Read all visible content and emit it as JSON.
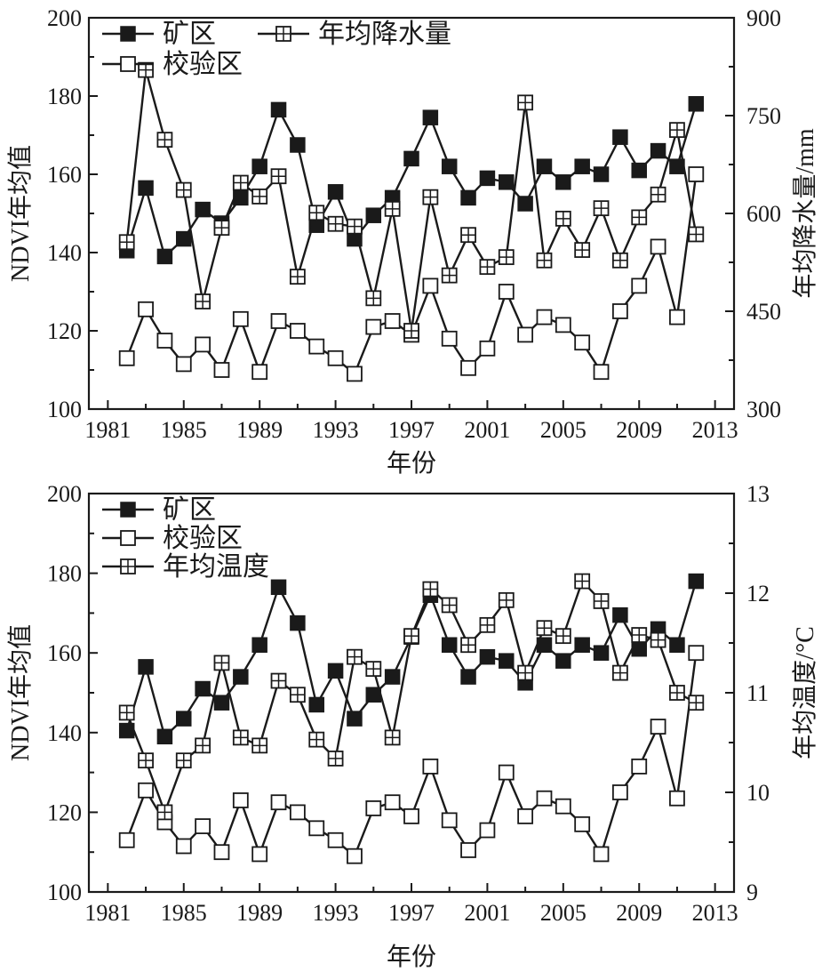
{
  "chart_data": [
    {
      "type": "line",
      "xlabel": "年份",
      "ylabel_left": "NDVI年均值",
      "ylabel_right": "年均降水量/mm",
      "x_ticks": [
        "1981",
        "1985",
        "1989",
        "1993",
        "1997",
        "2001",
        "2005",
        "2009",
        "2013"
      ],
      "y_left_ticks": [
        "100",
        "120",
        "140",
        "160",
        "180",
        "200"
      ],
      "y_right_ticks": [
        "300",
        "450",
        "600",
        "750",
        "900"
      ],
      "xlim": [
        1980,
        2014
      ],
      "ylim_left": [
        100,
        200
      ],
      "ylim_right": [
        300,
        900
      ],
      "x": [
        1982,
        1983,
        1984,
        1985,
        1986,
        1987,
        1988,
        1989,
        1990,
        1991,
        1992,
        1993,
        1994,
        1995,
        1996,
        1997,
        1998,
        1999,
        2000,
        2001,
        2002,
        2003,
        2004,
        2005,
        2006,
        2007,
        2008,
        2009,
        2010,
        2011,
        2012
      ],
      "series": [
        {
          "name": "矿区",
          "axis": "left",
          "marker": "filled-square",
          "values": [
            140.5,
            156.5,
            139,
            143.5,
            151,
            147.5,
            154,
            162,
            176.5,
            167.5,
            147,
            155.5,
            143.5,
            149.5,
            154,
            164,
            174.5,
            162,
            154,
            159,
            158,
            152.5,
            162,
            158,
            162,
            160,
            169.5,
            161,
            166,
            162,
            178
          ]
        },
        {
          "name": "校验区",
          "axis": "left",
          "marker": "open-square",
          "values": [
            113,
            125.5,
            117.5,
            111.5,
            116.5,
            110,
            123,
            109.5,
            122.5,
            120,
            116,
            113,
            109,
            121,
            122.5,
            119,
            131.5,
            118,
            110.5,
            115.5,
            130,
            119,
            123.5,
            121.5,
            117,
            109.5,
            125,
            131.5,
            141.5,
            123.5,
            160
          ]
        },
        {
          "name": "年均降水量",
          "axis": "right",
          "marker": "grid-square",
          "values": [
            556,
            820,
            713,
            636,
            465,
            578,
            647,
            626,
            657,
            503,
            601,
            584,
            580,
            470,
            607,
            420,
            625,
            505,
            567,
            518,
            533,
            770,
            528,
            592,
            544,
            608,
            528,
            594,
            629,
            728,
            568
          ]
        }
      ]
    },
    {
      "type": "line",
      "xlabel": "年份",
      "ylabel_left": "NDVI年均值",
      "ylabel_right": "年均温度/°C",
      "x_ticks": [
        "1981",
        "1985",
        "1989",
        "1993",
        "1997",
        "2001",
        "2005",
        "2009",
        "2013"
      ],
      "y_left_ticks": [
        "100",
        "120",
        "140",
        "160",
        "180",
        "200"
      ],
      "y_right_ticks": [
        "9",
        "10",
        "11",
        "12",
        "13"
      ],
      "xlim": [
        1980,
        2014
      ],
      "ylim_left": [
        100,
        200
      ],
      "ylim_right": [
        9,
        13
      ],
      "x": [
        1982,
        1983,
        1984,
        1985,
        1986,
        1987,
        1988,
        1989,
        1990,
        1991,
        1992,
        1993,
        1994,
        1995,
        1996,
        1997,
        1998,
        1999,
        2000,
        2001,
        2002,
        2003,
        2004,
        2005,
        2006,
        2007,
        2008,
        2009,
        2010,
        2011,
        2012
      ],
      "series": [
        {
          "name": "矿区",
          "axis": "left",
          "marker": "filled-square",
          "values": [
            140.5,
            156.5,
            139,
            143.5,
            151,
            147.5,
            154,
            162,
            176.5,
            167.5,
            147,
            155.5,
            143.5,
            149.5,
            154,
            164,
            174.5,
            162,
            154,
            159,
            158,
            152.5,
            162,
            158,
            162,
            160,
            169.5,
            161,
            166,
            162,
            178
          ]
        },
        {
          "name": "校验区",
          "axis": "left",
          "marker": "open-square",
          "values": [
            113,
            125.5,
            117.5,
            111.5,
            116.5,
            110,
            123,
            109.5,
            122.5,
            120,
            116,
            113,
            109,
            121,
            122.5,
            119,
            131.5,
            118,
            110.5,
            115.5,
            130,
            119,
            123.5,
            121.5,
            117,
            109.5,
            125,
            131.5,
            141.5,
            123.5,
            160
          ]
        },
        {
          "name": "年均温度",
          "axis": "right",
          "marker": "grid-square",
          "values": [
            10.8,
            10.32,
            9.8,
            10.32,
            10.47,
            11.3,
            10.55,
            10.47,
            11.12,
            10.98,
            10.53,
            10.34,
            11.36,
            11.24,
            10.55,
            11.57,
            12.04,
            11.88,
            11.48,
            11.68,
            11.93,
            11.2,
            11.65,
            11.57,
            12.12,
            11.92,
            11.2,
            11.58,
            11.53,
            11.0,
            10.9
          ]
        }
      ]
    }
  ]
}
